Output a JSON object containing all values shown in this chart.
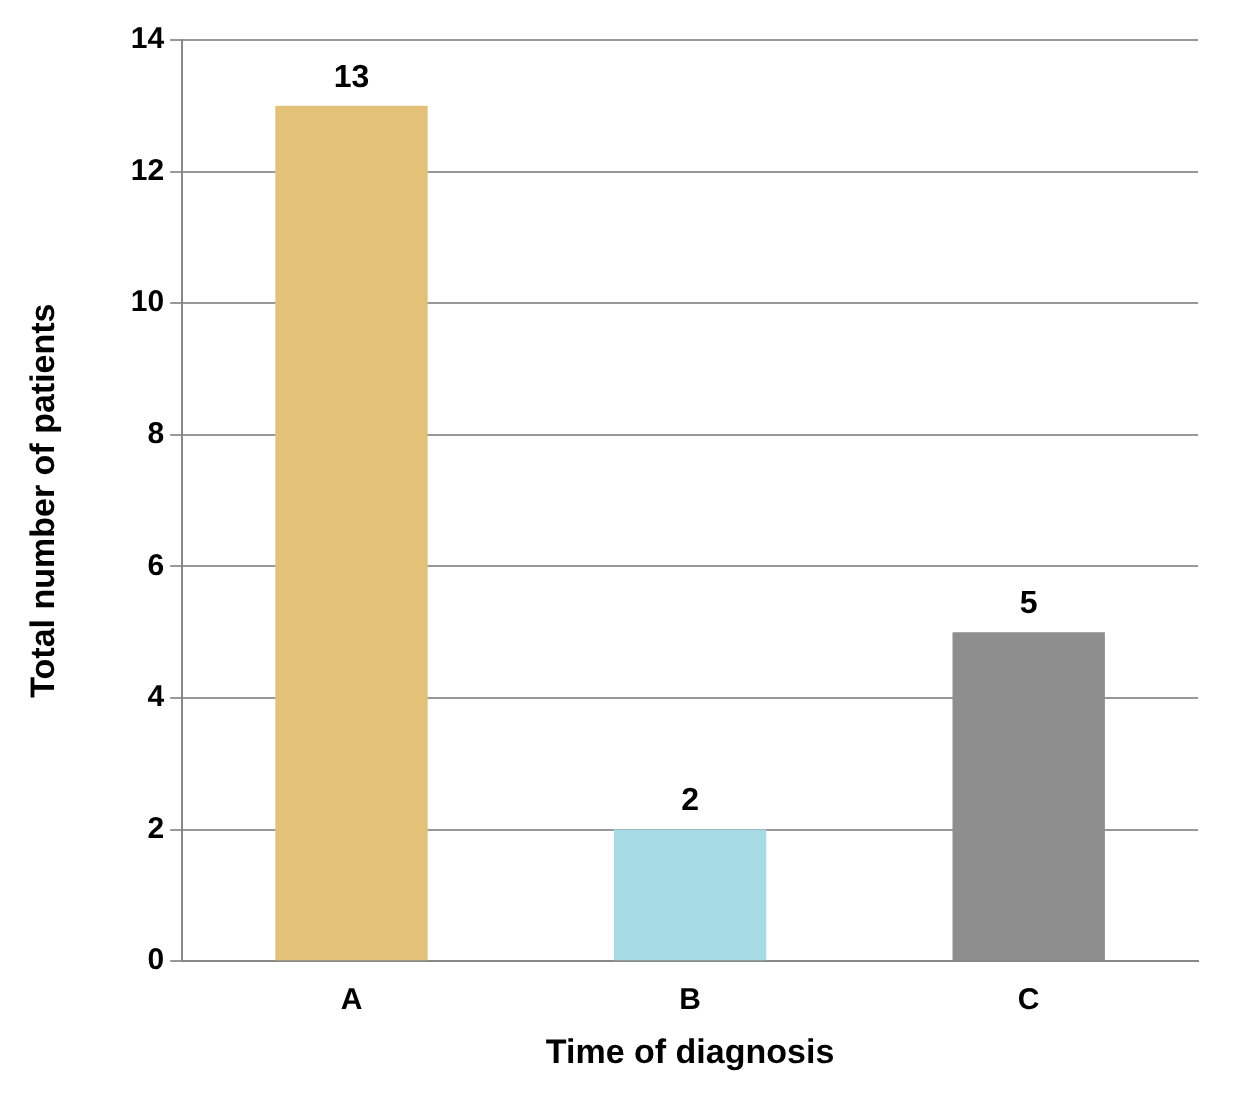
{
  "chart_data": {
    "type": "bar",
    "xlabel": "Time of diagnosis",
    "ylabel": "Total number of patients",
    "categories": [
      "A",
      "B",
      "C"
    ],
    "values": [
      13,
      2,
      5
    ],
    "colors": [
      "#e3c178",
      "#a6dbe6",
      "#8e8e8e"
    ],
    "ylim": [
      0,
      14
    ],
    "yticks": [
      0,
      2,
      4,
      6,
      8,
      10,
      12,
      14
    ],
    "grid": "y",
    "data_labels": true,
    "legend": false
  }
}
